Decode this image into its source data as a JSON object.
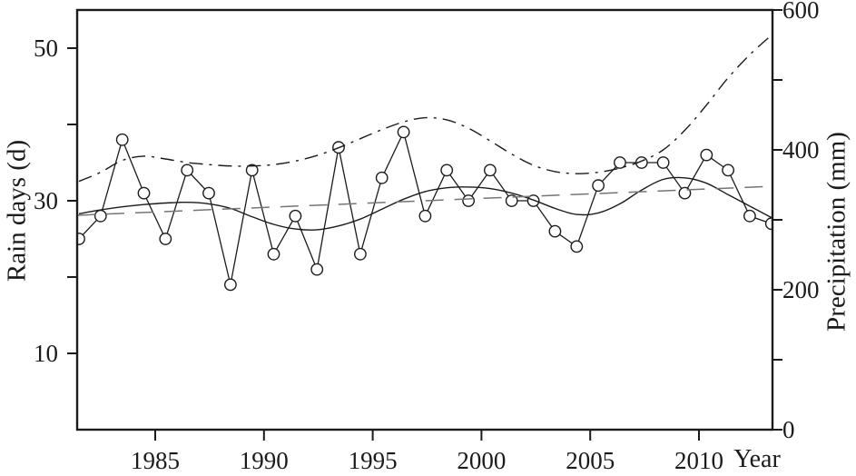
{
  "figure": {
    "background": "#ffffff",
    "ink_color": "#1b1b1b",
    "trend_line_color": "#757575"
  },
  "axes": {
    "x": {
      "label": "Year",
      "ticks": [
        1985,
        1990,
        1995,
        2000,
        2005,
        2010
      ],
      "range": [
        1981.4,
        2013.5
      ]
    },
    "y_left": {
      "label": "Rain days (d)",
      "labeled_ticks": [
        10,
        30,
        50
      ],
      "unlabeled_ticks": [
        20,
        40
      ],
      "range": [
        0,
        55
      ]
    },
    "y_right": {
      "label": "Precipitation (mm)",
      "labeled_ticks": [
        0,
        200,
        400,
        600
      ],
      "unlabeled_ticks": [
        100,
        300,
        500
      ],
      "range": [
        0,
        600
      ]
    }
  },
  "chart_data": {
    "type": "line",
    "title": "",
    "legend": "none",
    "grid": "off",
    "x": [
      1981,
      1982,
      1983,
      1984,
      1985,
      1986,
      1987,
      1988,
      1989,
      1990,
      1991,
      1992,
      1993,
      1994,
      1995,
      1996,
      1997,
      1998,
      1999,
      2000,
      2001,
      2002,
      2003,
      2004,
      2005,
      2006,
      2007,
      2008,
      2009,
      2010,
      2011,
      2012,
      2013
    ],
    "series": [
      {
        "name": "Annual rain days",
        "slug": "rain-days-annual",
        "axis": "left",
        "style": "solid-markers",
        "marker": "open-circle",
        "values": [
          25,
          28,
          38,
          31,
          25,
          34,
          31,
          19,
          34,
          23,
          28,
          21,
          37,
          23,
          33,
          39,
          28,
          34,
          30,
          34,
          30,
          30,
          26,
          24,
          32,
          35,
          35,
          35,
          31,
          36,
          34,
          28,
          27
        ]
      },
      {
        "name": "Rain days smoothed curve",
        "slug": "rain-days-smoothed",
        "axis": "left",
        "style": "solid-smooth",
        "values": [
          28.3,
          28.8,
          29.2,
          29.5,
          29.7,
          29.8,
          29.6,
          29.0,
          27.9,
          26.9,
          26.3,
          26.2,
          26.7,
          27.6,
          28.9,
          30.2,
          31.2,
          31.7,
          31.8,
          31.6,
          31.0,
          30.1,
          29.0,
          28.2,
          28.4,
          29.6,
          31.4,
          32.8,
          33.0,
          32.3,
          30.8,
          29.3,
          27.8
        ]
      },
      {
        "name": "Rain days linear trend",
        "slug": "rain-days-trend",
        "axis": "left",
        "style": "dashed-linear",
        "values_endpoints": [
          28.1,
          31.9
        ]
      },
      {
        "name": "Precipitation smoothed curve",
        "slug": "precipitation-smoothed",
        "axis": "right",
        "style": "dashdot-smooth",
        "values": [
          355,
          368,
          385,
          391,
          387,
          382,
          379,
          377,
          377,
          379,
          384,
          392,
          403,
          416,
          429,
          440,
          446,
          443,
          431,
          413,
          394,
          378,
          369,
          366,
          368,
          374,
          384,
          400,
          428,
          464,
          503,
          536,
          564
        ]
      }
    ]
  }
}
